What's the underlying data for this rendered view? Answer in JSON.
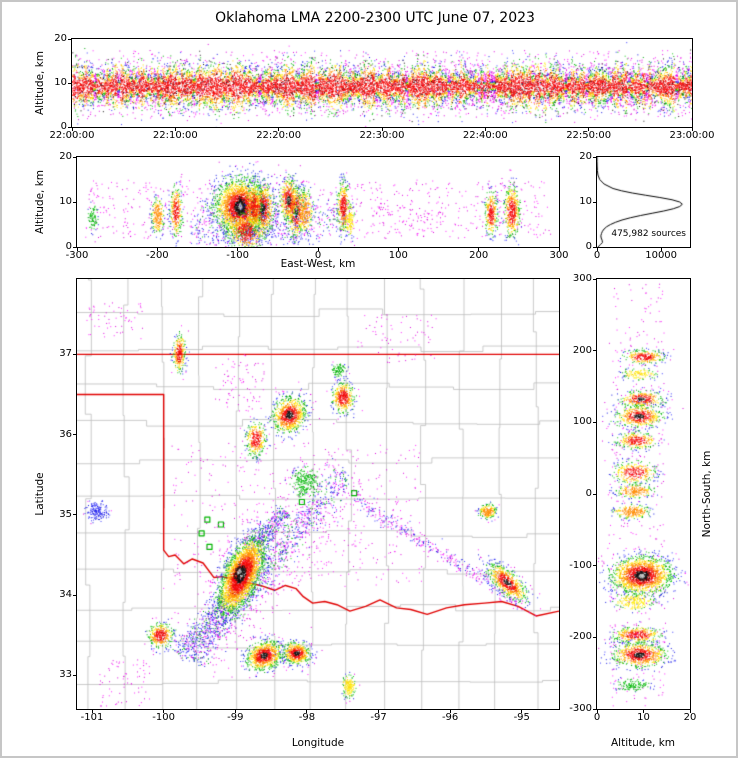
{
  "figure": {
    "title": "Oklahoma LMA 2200-2300 UTC June 07, 2023"
  },
  "colors": {
    "background": "#ffffff",
    "figure_border": "#c6c6c6",
    "axis": "#000000",
    "state_border": "#e00000",
    "county": "#bdbdbd",
    "station": "#00b400"
  },
  "panels": {
    "time_height": {
      "ylabel": "Altitude, km",
      "x_tick_labels": [
        "22:00:00",
        "22:10:00",
        "22:20:00",
        "22:30:00",
        "22:40:00",
        "22:50:00",
        "23:00:00"
      ],
      "x_tick_vals": [
        0,
        600,
        1200,
        1800,
        2400,
        3000,
        3600
      ],
      "y_tick_labels": [
        "0",
        "10",
        "20"
      ],
      "y_tick_vals": [
        0,
        10,
        20
      ]
    },
    "ew_height": {
      "xlabel": "East-West, km",
      "ylabel": "Altitude, km",
      "x_tick_labels": [
        "-300",
        "-200",
        "-100",
        "0",
        "100",
        "200",
        "300"
      ],
      "x_tick_vals": [
        -300,
        -200,
        -100,
        0,
        100,
        200,
        300
      ],
      "y_tick_labels": [
        "0",
        "10",
        "20"
      ],
      "y_tick_vals": [
        0,
        10,
        20
      ]
    },
    "histogram": {
      "annotation": "475,982 sources",
      "x_tick_labels": [
        "0",
        "10000"
      ],
      "x_tick_vals": [
        0,
        10000
      ],
      "y_tick_labels": [
        "0",
        "10",
        "20"
      ],
      "y_tick_vals": [
        0,
        10,
        20
      ]
    },
    "map": {
      "xlabel": "Longitude",
      "ylabel": "Latitude",
      "x_tick_labels": [
        "-101",
        "-100",
        "-99",
        "-98",
        "-97",
        "-96",
        "-95"
      ],
      "x_tick_vals": [
        -101,
        -100,
        -99,
        -98,
        -97,
        -96,
        -95
      ],
      "y_tick_labels": [
        "33",
        "34",
        "35",
        "36",
        "37"
      ],
      "y_tick_vals": [
        33,
        34,
        35,
        36,
        37
      ]
    },
    "ns_height": {
      "xlabel": "Altitude, km",
      "ylabel": "North-South, km",
      "x_tick_labels": [
        "0",
        "10",
        "20"
      ],
      "x_tick_vals": [
        0,
        10,
        20
      ],
      "y_tick_labels": [
        "300",
        "200",
        "100",
        "0",
        "-100",
        "-200",
        "-300"
      ],
      "y_tick_vals": [
        300,
        200,
        100,
        0,
        -100,
        -200,
        -300
      ]
    }
  },
  "chart_data": {
    "colormap": {
      "white": [
        "#e0e0e0",
        "#c4c4c4",
        "#9e9e9e"
      ],
      "black": [
        "#0d0d0d",
        "#1f1f1f"
      ],
      "red": [
        "#e80000",
        "#ff1414"
      ],
      "orange": [
        "#ff8c00"
      ],
      "yellow": [
        "#ffd900",
        "#fff21a"
      ],
      "green": [
        "#00a80b",
        "#18c818"
      ],
      "blue": [
        "#1616e0",
        "#3c3cff"
      ],
      "magenta": [
        "#dc00dc",
        "#ff22ff"
      ]
    },
    "time_height": {
      "type": "density",
      "x_range": [
        0,
        3600
      ],
      "y_range": [
        0,
        20
      ],
      "band": {
        "yc": 9.3,
        "sy": 2.0,
        "n": 16500
      },
      "uniforms": [
        {
          "x0": 0,
          "x1": 3600,
          "y0": 2.5,
          "y1": 17.5,
          "n": 750,
          "cap": "magenta"
        },
        {
          "x0": 0,
          "x1": 3600,
          "y0": 4,
          "y1": 15,
          "n": 260,
          "cap": "blue"
        }
      ]
    },
    "ew_height": {
      "type": "density",
      "x_range": [
        -300,
        300
      ],
      "y_range": [
        0,
        20
      ],
      "clusters": [
        {
          "x": -98,
          "y": 9,
          "sx": 16,
          "sy": 3.2,
          "n": 2400,
          "core": "white"
        },
        {
          "x": -97,
          "y": 9.2,
          "sx": 3.2,
          "sy": 1.1,
          "n": 180,
          "core": "white",
          "zs": 0.12
        },
        {
          "x": -90,
          "y": 3.5,
          "sx": 12,
          "sy": 2.2,
          "n": 500,
          "core": "red"
        },
        {
          "x": -69,
          "y": 8.5,
          "sx": 7,
          "sy": 3,
          "n": 620,
          "core": "black"
        },
        {
          "x": -28,
          "y": 8,
          "sx": 6,
          "sy": 3,
          "n": 480,
          "core": "black"
        },
        {
          "x": -37,
          "y": 10.5,
          "sx": 6,
          "sy": 2.5,
          "n": 420,
          "core": "black"
        },
        {
          "x": -80,
          "y": 9,
          "sx": 5,
          "sy": 2.8,
          "n": 360,
          "core": "red"
        },
        {
          "x": -17,
          "y": 8,
          "sx": 5,
          "sy": 2.5,
          "n": 260,
          "core": "orange"
        },
        {
          "x": 31,
          "y": 9,
          "sx": 4,
          "sy": 2.8,
          "n": 380,
          "core": "red"
        },
        {
          "x": 39,
          "y": 6,
          "sx": 3,
          "sy": 1.8,
          "n": 130,
          "core": "yellow"
        },
        {
          "x": -177,
          "y": 8,
          "sx": 4,
          "sy": 2.8,
          "n": 310,
          "core": "red"
        },
        {
          "x": -200,
          "y": 7,
          "sx": 4,
          "sy": 2,
          "n": 220,
          "core": "orange"
        },
        {
          "x": -281,
          "y": 6.5,
          "sx": 3,
          "sy": 1.5,
          "n": 90,
          "core": "green"
        },
        {
          "x": 241,
          "y": 8,
          "sx": 5,
          "sy": 3,
          "n": 460,
          "core": "red"
        },
        {
          "x": 215,
          "y": 7.5,
          "sx": 4,
          "sy": 2.5,
          "n": 300,
          "core": "red"
        }
      ],
      "streaks": [
        {
          "x1": -160,
          "y1": 6,
          "x2": 36,
          "y2": 7,
          "w": 2.2,
          "n": 380,
          "cap": "green"
        }
      ],
      "uniforms": [
        {
          "x0": -290,
          "x1": 290,
          "y0": 2,
          "y1": 15,
          "n": 650,
          "cap": "magenta"
        },
        {
          "x0": -160,
          "x1": 0,
          "y0": 0.5,
          "y1": 4,
          "n": 160,
          "cap": "blue"
        },
        {
          "x0": 60,
          "x1": 160,
          "y0": 3,
          "y1": 9,
          "n": 80,
          "cap": "magenta"
        }
      ]
    },
    "source_histogram": {
      "type": "line",
      "x_range": [
        0,
        14500
      ],
      "y_range": [
        0,
        20
      ],
      "altitudes": [
        0,
        0.5,
        1,
        1.5,
        2,
        2.5,
        3,
        3.5,
        4,
        4.5,
        5,
        5.5,
        6,
        6.5,
        7,
        7.5,
        8,
        8.5,
        9,
        9.5,
        10,
        10.5,
        11,
        11.5,
        12,
        12.5,
        13,
        14,
        15,
        16,
        17,
        18,
        19,
        20
      ],
      "counts": [
        150,
        500,
        850,
        800,
        650,
        600,
        700,
        850,
        1100,
        1500,
        2100,
        2900,
        3900,
        5200,
        6800,
        8600,
        10400,
        11900,
        12900,
        13300,
        12900,
        11700,
        9800,
        7600,
        5500,
        3800,
        2500,
        1100,
        420,
        150,
        60,
        25,
        10,
        0
      ],
      "total_sources": "475,982"
    },
    "plan_view": {
      "type": "density",
      "x_range": [
        -101.21,
        -94.48
      ],
      "y_range": [
        32.58,
        37.94
      ],
      "clusters": [
        {
          "x": -98.92,
          "y": 34.25,
          "sx": 0.27,
          "sy": 0.12,
          "rot": 62,
          "n": 3200,
          "core": "white"
        },
        {
          "x": -98.95,
          "y": 34.3,
          "sx": 0.05,
          "sy": 0.03,
          "rot": 60,
          "n": 170,
          "core": "white",
          "zs": 0.12
        },
        {
          "x": -98.6,
          "y": 33.25,
          "sx": 0.13,
          "sy": 0.09,
          "rot": 15,
          "n": 900,
          "core": "black"
        },
        {
          "x": -98.15,
          "y": 33.28,
          "sx": 0.1,
          "sy": 0.07,
          "rot": -5,
          "n": 560,
          "core": "black"
        },
        {
          "x": -98.25,
          "y": 36.25,
          "sx": 0.13,
          "sy": 0.11,
          "rot": 35,
          "n": 850,
          "core": "black"
        },
        {
          "x": -97.5,
          "y": 36.47,
          "sx": 0.08,
          "sy": 0.1,
          "n": 420,
          "core": "red"
        },
        {
          "x": -98.72,
          "y": 35.95,
          "sx": 0.07,
          "sy": 0.11,
          "n": 330,
          "core": "red"
        },
        {
          "x": -99.79,
          "y": 37.02,
          "sx": 0.045,
          "sy": 0.12,
          "n": 280,
          "core": "red"
        },
        {
          "x": -95.21,
          "y": 34.16,
          "sx": 0.17,
          "sy": 0.07,
          "rot": -38,
          "n": 700,
          "core": "black"
        },
        {
          "x": -100.05,
          "y": 33.5,
          "sx": 0.09,
          "sy": 0.08,
          "n": 360,
          "core": "red"
        },
        {
          "x": -100.93,
          "y": 35.05,
          "sx": 0.07,
          "sy": 0.06,
          "n": 170,
          "core": "blue"
        },
        {
          "x": -95.48,
          "y": 35.05,
          "sx": 0.06,
          "sy": 0.045,
          "n": 200,
          "core": "orange"
        },
        {
          "x": -97.42,
          "y": 32.87,
          "sx": 0.05,
          "sy": 0.07,
          "n": 170,
          "core": "yellow"
        },
        {
          "x": -98.03,
          "y": 35.4,
          "sx": 0.1,
          "sy": 0.1,
          "n": 280,
          "core": "green"
        },
        {
          "x": -97.56,
          "y": 36.81,
          "sx": 0.045,
          "sy": 0.045,
          "n": 90,
          "core": "green"
        }
      ],
      "streaks": [
        {
          "x1": -98.8,
          "y1": 34.55,
          "x2": -98.3,
          "y2": 35.05,
          "w": 0.06,
          "n": 320,
          "cap": "green"
        },
        {
          "x1": -99.6,
          "y1": 33.2,
          "x2": -97.45,
          "y2": 35.55,
          "w": 0.09,
          "n": 900,
          "cap": "green"
        },
        {
          "x1": -99.6,
          "y1": 33.2,
          "x2": -97.45,
          "y2": 35.55,
          "w": 0.28,
          "n": 500,
          "cap": "magenta"
        },
        {
          "x1": -97.35,
          "y1": 35.2,
          "x2": -95.0,
          "y2": 33.9,
          "w": 0.05,
          "n": 380,
          "cap": "blue"
        },
        {
          "x1": -99.1,
          "y1": 33.95,
          "x2": -99.8,
          "y2": 33.25,
          "w": 0.08,
          "n": 380,
          "cap": "green"
        }
      ],
      "uniforms": [
        {
          "x0": -99.9,
          "x1": -96.4,
          "y0": 34.1,
          "y1": 35.9,
          "n": 420,
          "cap": "magenta"
        },
        {
          "x0": -101.1,
          "x1": -100.3,
          "y0": 37.2,
          "y1": 37.65,
          "n": 60,
          "cap": "magenta"
        },
        {
          "x0": -100.9,
          "x1": -100.2,
          "y0": 32.62,
          "y1": 33.2,
          "n": 70,
          "cap": "magenta"
        },
        {
          "x0": -97.3,
          "x1": -96.2,
          "y0": 36.9,
          "y1": 37.5,
          "n": 70,
          "cap": "magenta"
        },
        {
          "x0": -99.3,
          "x1": -98.6,
          "y0": 36.3,
          "y1": 37.0,
          "n": 80,
          "cap": "magenta"
        }
      ]
    },
    "ns_height": {
      "type": "density",
      "x_range": [
        0,
        20
      ],
      "y_range": [
        -300,
        300
      ],
      "clusters": [
        {
          "x": 10,
          "y": 192,
          "sx": 2.2,
          "sy": 5,
          "n": 280,
          "core": "red"
        },
        {
          "x": 9,
          "y": 168,
          "sx": 1.8,
          "sy": 4,
          "n": 130,
          "core": "yellow"
        },
        {
          "x": 9.5,
          "y": 133,
          "sx": 2.4,
          "sy": 6,
          "n": 340,
          "core": "black"
        },
        {
          "x": 9,
          "y": 109,
          "sx": 2.6,
          "sy": 8,
          "n": 500,
          "core": "black"
        },
        {
          "x": 8.5,
          "y": 75,
          "sx": 2.2,
          "sy": 6,
          "n": 300,
          "core": "red"
        },
        {
          "x": 8,
          "y": 30,
          "sx": 2.4,
          "sy": 8,
          "n": 320,
          "core": "red"
        },
        {
          "x": 8,
          "y": 5,
          "sx": 2,
          "sy": 5,
          "n": 210,
          "core": "orange"
        },
        {
          "x": 7.5,
          "y": -24,
          "sx": 2,
          "sy": 5,
          "n": 230,
          "core": "orange"
        },
        {
          "x": 9.5,
          "y": -113,
          "sx": 3.4,
          "sy": 14,
          "n": 1700,
          "core": "white"
        },
        {
          "x": 9.5,
          "y": -114,
          "sx": 0.9,
          "sy": 3.6,
          "n": 170,
          "core": "white",
          "zs": 0.12
        },
        {
          "x": 8,
          "y": -150,
          "sx": 2.2,
          "sy": 6,
          "n": 210,
          "core": "yellow"
        },
        {
          "x": 8.5,
          "y": -196,
          "sx": 2.6,
          "sy": 6,
          "n": 390,
          "core": "red"
        },
        {
          "x": 9,
          "y": -224,
          "sx": 3,
          "sy": 9,
          "n": 750,
          "core": "black"
        },
        {
          "x": 7.5,
          "y": -266,
          "sx": 1.8,
          "sy": 4,
          "n": 140,
          "core": "green"
        }
      ],
      "uniforms": [
        {
          "x0": 2.5,
          "x1": 14.5,
          "y0": -295,
          "y1": 295,
          "n": 380,
          "cap": "magenta"
        }
      ]
    }
  },
  "geo": {
    "state_border": [
      [
        [
          -101.21,
          37.0
        ],
        [
          -94.48,
          37.0
        ]
      ],
      [
        [
          -101.21,
          36.5
        ],
        [
          -100.0,
          36.5
        ],
        [
          -100.0,
          34.56
        ],
        [
          -99.93,
          34.48
        ],
        [
          -99.84,
          34.5
        ],
        [
          -99.72,
          34.39
        ],
        [
          -99.6,
          34.45
        ],
        [
          -99.45,
          34.4
        ],
        [
          -99.3,
          34.22
        ],
        [
          -99.18,
          34.23
        ],
        [
          -99.05,
          34.2
        ],
        [
          -98.85,
          34.16
        ],
        [
          -98.65,
          34.12
        ],
        [
          -98.45,
          34.06
        ],
        [
          -98.3,
          34.12
        ],
        [
          -98.15,
          34.08
        ],
        [
          -98.05,
          33.98
        ],
        [
          -97.92,
          33.9
        ],
        [
          -97.75,
          33.92
        ],
        [
          -97.58,
          33.88
        ],
        [
          -97.4,
          33.8
        ],
        [
          -97.18,
          33.86
        ],
        [
          -96.98,
          33.94
        ],
        [
          -96.75,
          33.84
        ],
        [
          -96.55,
          33.82
        ],
        [
          -96.32,
          33.76
        ],
        [
          -96.05,
          33.84
        ],
        [
          -95.8,
          33.88
        ],
        [
          -95.52,
          33.9
        ],
        [
          -95.28,
          33.92
        ],
        [
          -95.05,
          33.86
        ],
        [
          -94.8,
          33.74
        ],
        [
          -94.48,
          33.8
        ]
      ]
    ],
    "stations": [
      [
        -99.39,
        34.94
      ],
      [
        -99.47,
        34.77
      ],
      [
        -99.36,
        34.6
      ],
      [
        -99.2,
        34.88
      ],
      [
        -98.07,
        35.16
      ],
      [
        -97.34,
        35.27
      ]
    ],
    "county_grid": {
      "lon_start": -101.05,
      "dlon": 0.52,
      "seg_lat": 0.9,
      "lat_start": 32.92,
      "dlat": 0.46,
      "seg_lon": 1.05,
      "jitter": 0.1
    }
  }
}
